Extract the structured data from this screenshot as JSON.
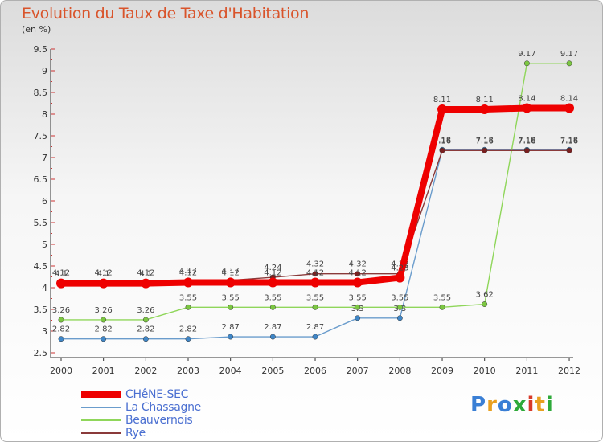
{
  "header": {
    "title": "Evolution du Taux de Taxe d'Habitation",
    "subtitle": "(en %)"
  },
  "brand": {
    "logo_text": "Proxiti",
    "logo_colors": [
      "#3a7fd5",
      "#e8a020",
      "#3a7fd5",
      "#2eaa3a",
      "#d83a2a",
      "#e8a020",
      "#2eaa3a"
    ]
  },
  "chart_data": {
    "type": "line",
    "title": "Evolution du Taux de Taxe d'Habitation",
    "subtitle": "(en %)",
    "xlabel": "",
    "ylabel": "",
    "categories": [
      "2000",
      "2001",
      "2002",
      "2003",
      "2004",
      "2005",
      "2006",
      "2007",
      "2008",
      "2009",
      "2010",
      "2011",
      "2012"
    ],
    "ylim": [
      2.5,
      9.5
    ],
    "yticks": [
      2.5,
      3,
      3.5,
      4,
      4.5,
      5,
      5.5,
      6,
      6.5,
      7,
      7.5,
      8,
      8.5,
      9,
      9.5
    ],
    "grid": false,
    "legend_position": "bottom-left",
    "series": [
      {
        "name": "La Chassagne",
        "color": "#6a9ccc",
        "marker_color": "#3f86c7",
        "values": [
          2.82,
          2.82,
          2.82,
          2.82,
          2.87,
          2.87,
          2.87,
          3.3,
          3.3,
          7.18,
          7.18,
          7.18,
          7.18
        ],
        "labels": [
          "2.82",
          "2.82",
          "2.82",
          "2.82",
          "2.87",
          "2.87",
          "2.87",
          "3.3",
          "3.3",
          "7.18",
          "7.18",
          "7.18",
          "7.18"
        ]
      },
      {
        "name": "Beauvernois",
        "color": "#8fd65a",
        "marker_color": "#7cc742",
        "values": [
          3.26,
          3.26,
          3.26,
          3.55,
          3.55,
          3.55,
          3.55,
          3.55,
          3.55,
          3.55,
          3.62,
          9.17,
          9.17
        ],
        "labels": [
          "3.26",
          "3.26",
          "3.26",
          "3.55",
          "3.55",
          "3.55",
          "3.55",
          "3.55",
          "3.55",
          "3.55",
          "3.62",
          "9.17",
          "9.17"
        ]
      },
      {
        "name": "Rye",
        "color": "#8a3a3a",
        "marker_color": "#7a2020",
        "values": [
          4.12,
          4.12,
          4.12,
          4.17,
          4.17,
          4.24,
          4.32,
          4.32,
          4.32,
          7.16,
          7.16,
          7.16,
          7.16
        ],
        "labels": [
          "4.12",
          "4.12",
          "4.12",
          "4.17",
          "4.17",
          "4.24",
          "4.32",
          "4.32",
          "4.32",
          "7.16",
          "7.16",
          "7.16",
          "7.16"
        ]
      },
      {
        "name": "CHêNE-SEC",
        "color": "#ee0000",
        "marker_color": "#ee0000",
        "values": [
          4.1,
          4.1,
          4.1,
          4.12,
          4.12,
          4.12,
          4.12,
          4.12,
          4.23,
          8.11,
          8.11,
          8.14,
          8.14
        ],
        "labels": [
          "4.1",
          "4.1",
          "4.1",
          "4.12",
          "4.12",
          "4.12",
          "4.12",
          "4.12",
          "4.23",
          "8.11",
          "8.11",
          "8.14",
          "8.14"
        ]
      }
    ],
    "legend": [
      "CHêNE-SEC",
      "La Chassagne",
      "Beauvernois",
      "Rye"
    ]
  }
}
